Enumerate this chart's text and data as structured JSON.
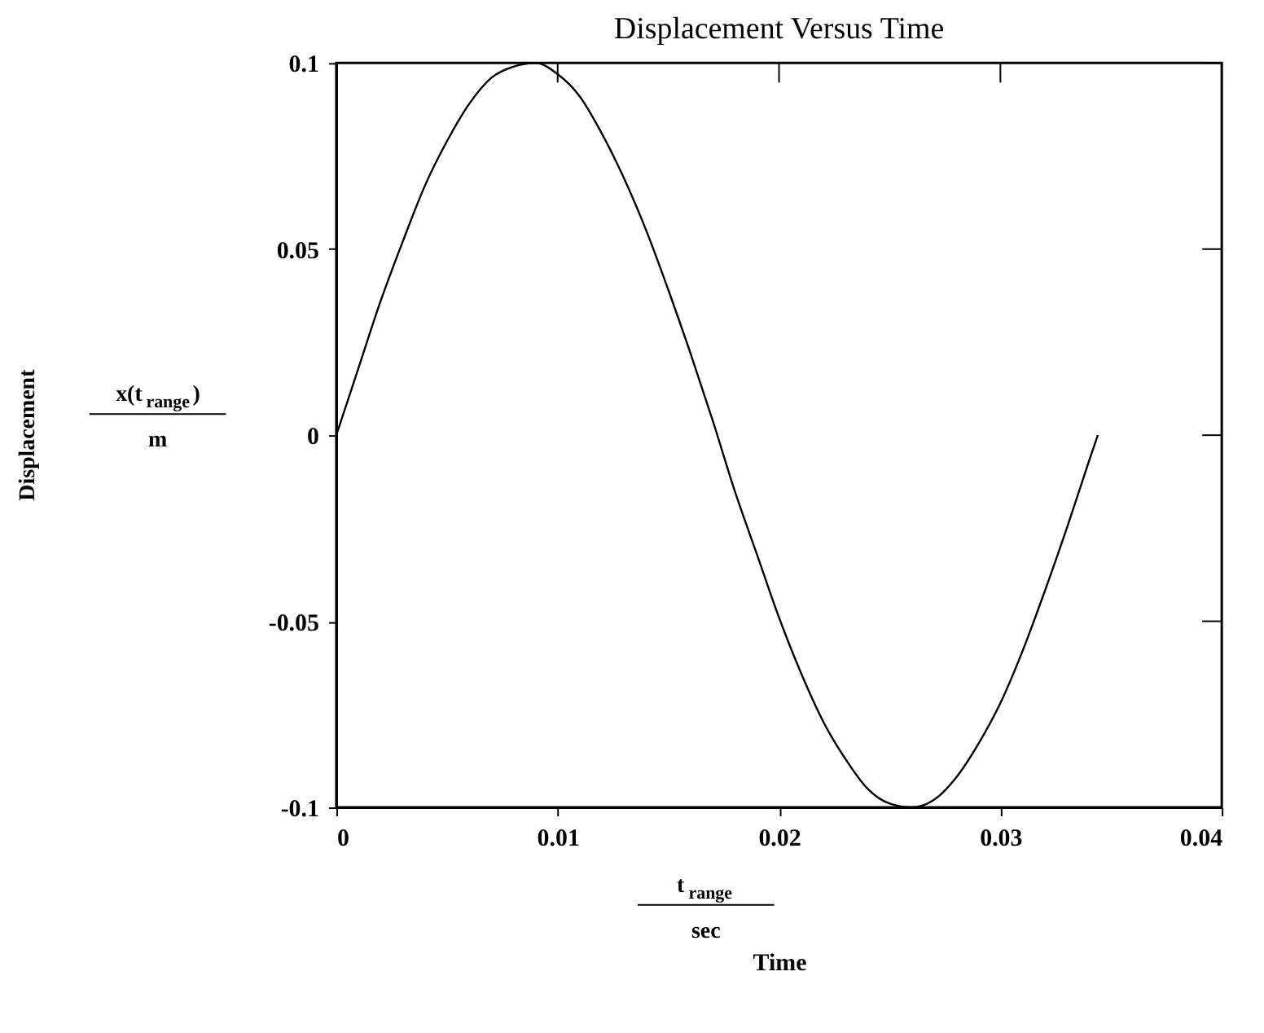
{
  "chart_data": {
    "type": "line",
    "title": "Displacement Versus Time",
    "xlabel": "Time",
    "annotations": [
      "t$_{range}$",
      "sec",
      "x(t$_{range}$)",
      "m",
      "Displacement"
    ],
    "x": [
      0,
      0.001,
      0.002,
      0.003,
      0.004,
      0.005,
      0.006,
      0.007,
      0.008,
      0.009,
      0.01,
      0.011,
      0.012,
      0.013,
      0.014,
      0.015,
      0.016,
      0.017,
      0.018,
      0.019,
      0.02,
      0.021,
      0.022,
      0.023,
      0.024,
      0.025,
      0.026,
      0.027,
      0.028,
      0.029,
      0.03,
      0.031,
      0.032,
      0.033,
      0.034,
      0.0344
    ],
    "series": [
      {
        "color": "#000000",
        "values": [
          0,
          0.018,
          0.036,
          0.052,
          0.067,
          0.079,
          0.089,
          0.096,
          0.099,
          0.1,
          0.097,
          0.091,
          0.081,
          0.069,
          0.055,
          0.039,
          0.022,
          0.004,
          -0.015,
          -0.032,
          -0.049,
          -0.064,
          -0.077,
          -0.087,
          -0.095,
          -0.099,
          -0.1,
          -0.098,
          -0.092,
          -0.083,
          -0.072,
          -0.058,
          -0.042,
          -0.025,
          -0.007,
          0
        ]
      }
    ],
    "xlim": [
      0,
      0.04
    ],
    "xticks": [
      0,
      0.01,
      0.02,
      0.03,
      0.04
    ],
    "ylim": [
      -0.1,
      0.1
    ],
    "yticks": [
      -0.1,
      -0.05,
      0,
      0.05,
      0.1
    ],
    "grid": false,
    "marker": "none",
    "line_style": "solid"
  }
}
